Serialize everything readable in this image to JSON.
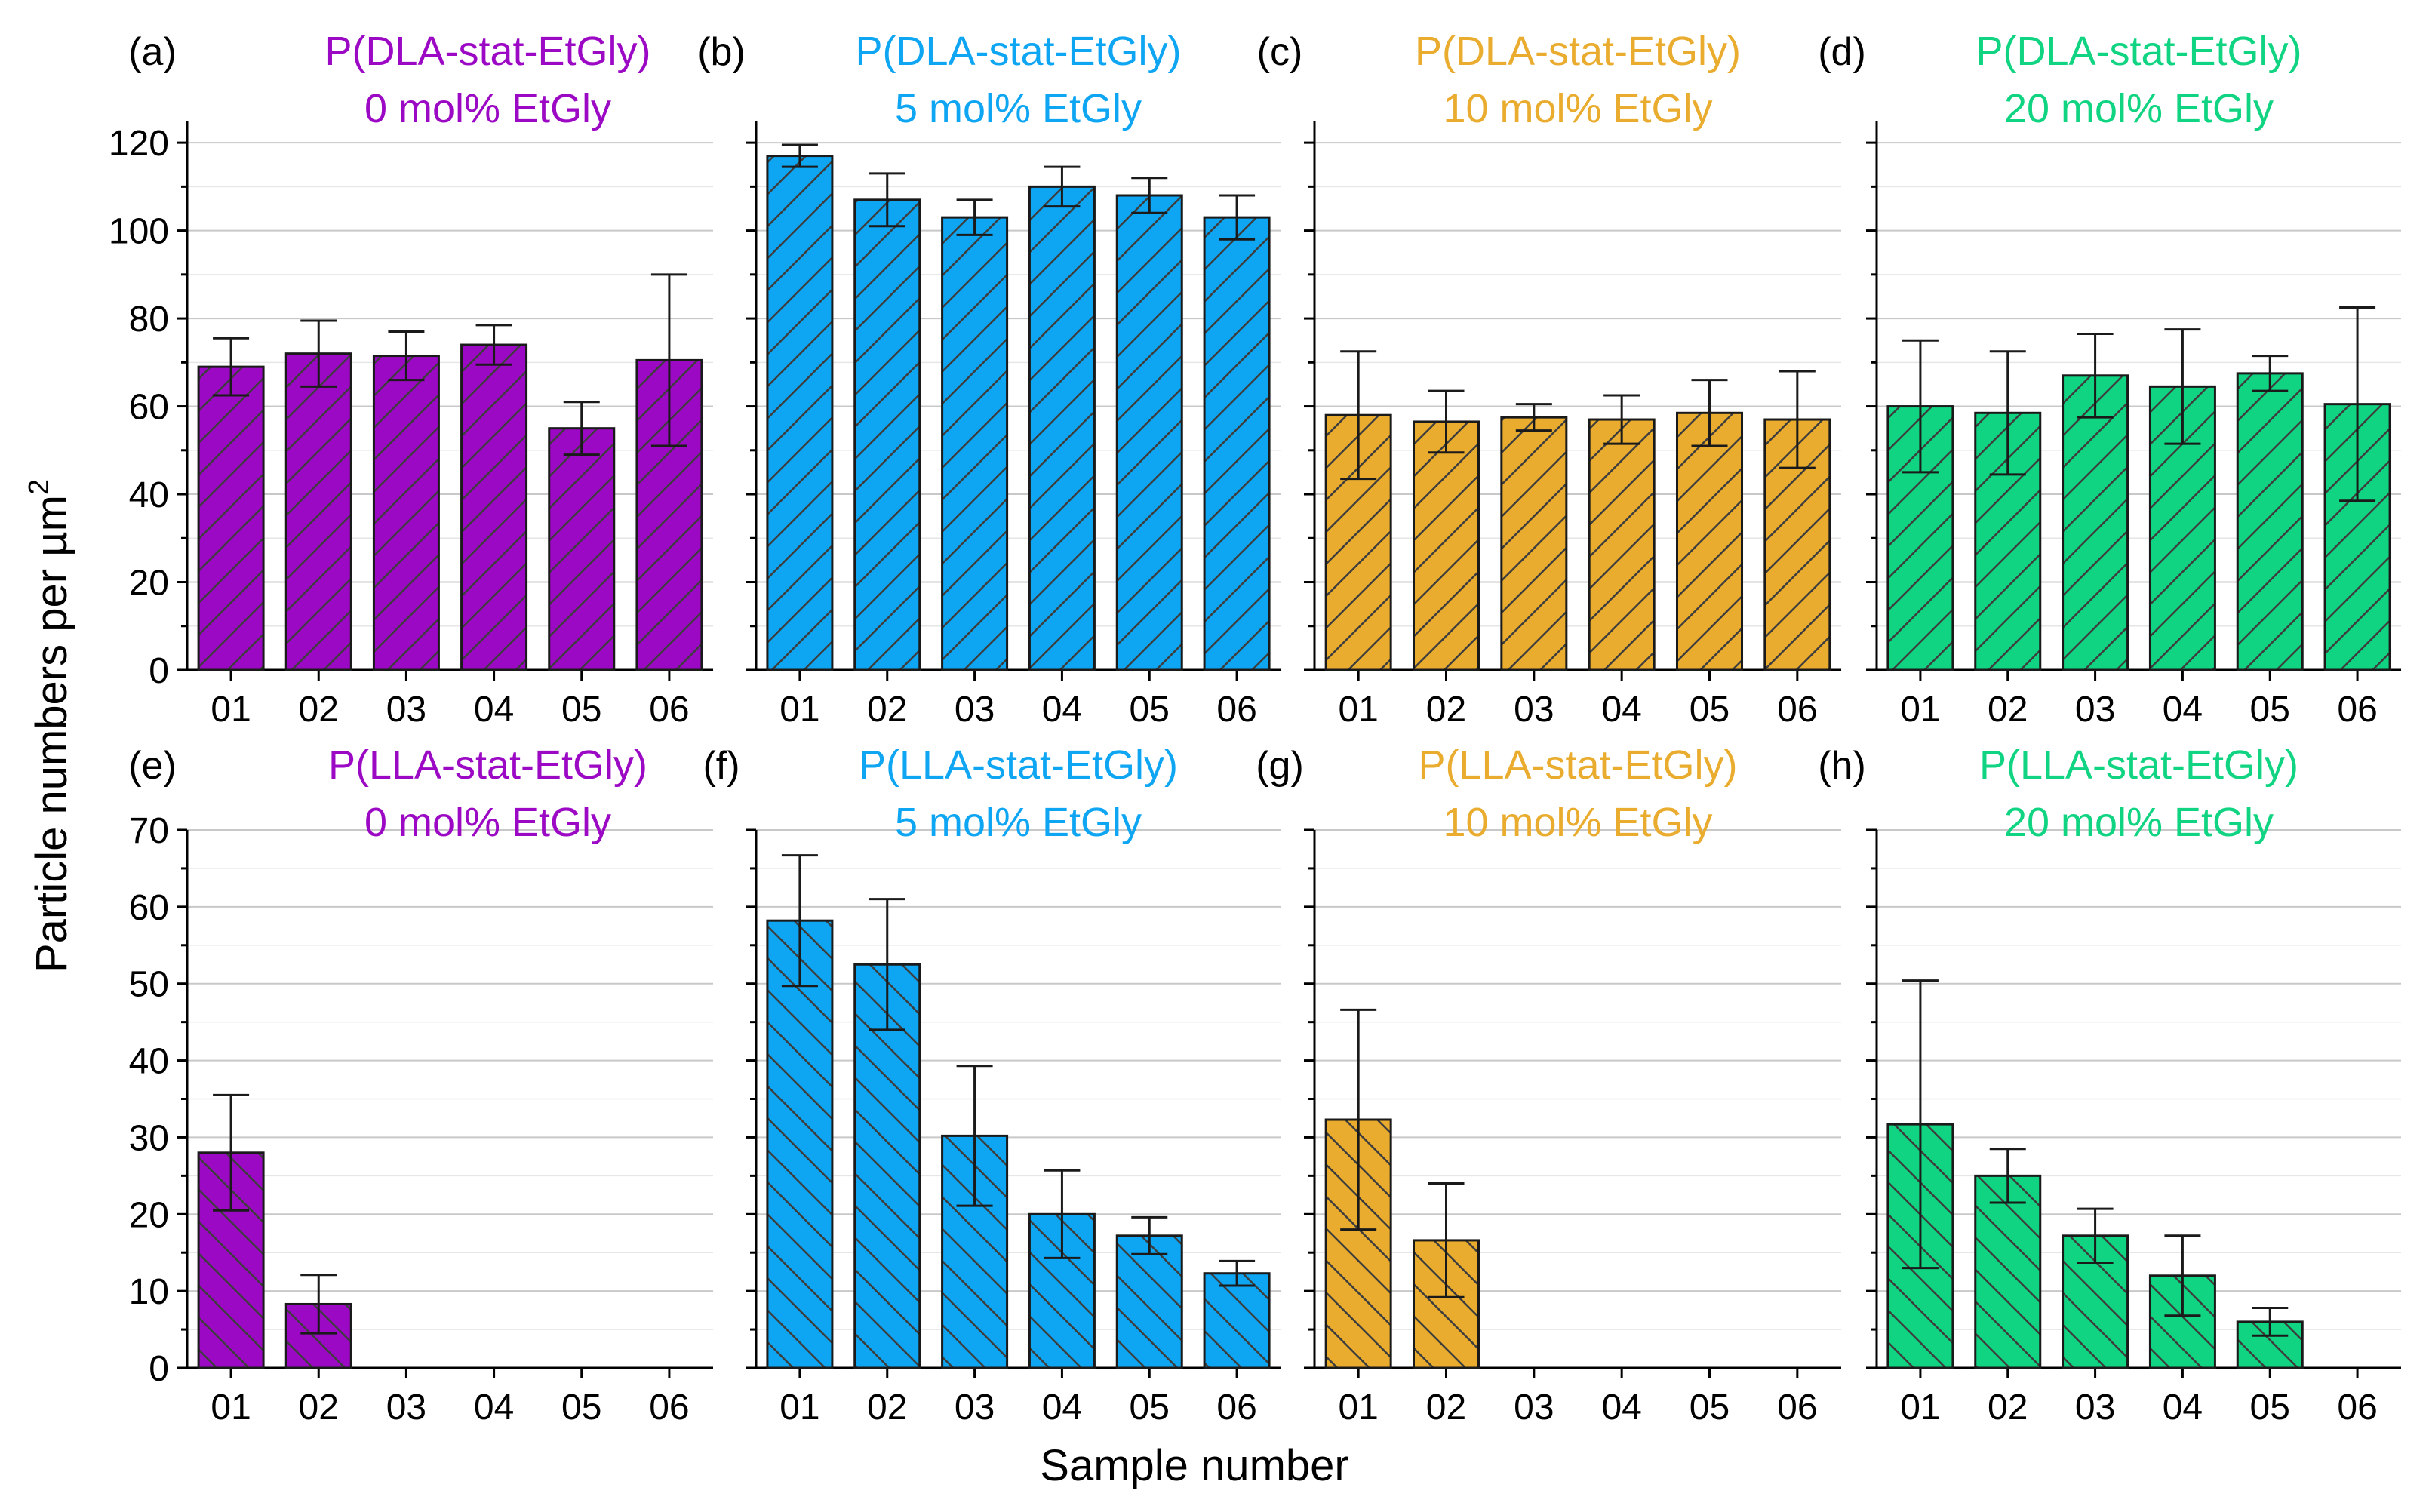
{
  "figure": {
    "ylabel": "Particle numbers per µm",
    "ylabel_sup": "2",
    "xlabel": "Sample number"
  },
  "chart_data": [
    {
      "type": "bar",
      "panel": "a",
      "panel_label": "(a)",
      "title_line1": "P(DLA-stat-EtGly)",
      "title_line2": "0 mol% EtGly",
      "color": "#9c09c4",
      "categories": [
        "01",
        "02",
        "03",
        "04",
        "05",
        "06"
      ],
      "values": [
        69,
        72,
        71.5,
        74,
        55,
        70.5
      ],
      "errors": [
        6.5,
        7.5,
        5.5,
        4.5,
        6,
        19.5
      ],
      "ylim": [
        0,
        125
      ],
      "yticks": [
        "0",
        "20",
        "40",
        "60",
        "80",
        "100",
        "120"
      ],
      "show_yticks": true
    },
    {
      "type": "bar",
      "panel": "b",
      "panel_label": "(b)",
      "title_line1": "P(DLA-stat-EtGly)",
      "title_line2": "5 mol% EtGly",
      "color": "#0ea5f2",
      "categories": [
        "01",
        "02",
        "03",
        "04",
        "05",
        "06"
      ],
      "values": [
        117,
        107,
        103,
        110,
        108,
        103
      ],
      "errors": [
        2.5,
        6,
        4,
        4.5,
        4,
        5
      ],
      "ylim": [
        0,
        125
      ],
      "yticks": [
        "0",
        "20",
        "40",
        "60",
        "80",
        "100",
        "120"
      ],
      "show_yticks": false
    },
    {
      "type": "bar",
      "panel": "c",
      "panel_label": "(c)",
      "title_line1": "P(DLA-stat-EtGly)",
      "title_line2": "10 mol% EtGly",
      "color": "#e9ac2e",
      "categories": [
        "01",
        "02",
        "03",
        "04",
        "05",
        "06"
      ],
      "values": [
        58,
        56.5,
        57.5,
        57,
        58.5,
        57
      ],
      "errors": [
        14.5,
        7,
        3,
        5.5,
        7.5,
        11
      ],
      "ylim": [
        0,
        125
      ],
      "yticks": [
        "0",
        "20",
        "40",
        "60",
        "80",
        "100",
        "120"
      ],
      "show_yticks": false
    },
    {
      "type": "bar",
      "panel": "d",
      "panel_label": "(d)",
      "title_line1": "P(DLA-stat-EtGly)",
      "title_line2": "20 mol% EtGly",
      "color": "#10d482",
      "categories": [
        "01",
        "02",
        "03",
        "04",
        "05",
        "06"
      ],
      "values": [
        60,
        58.5,
        67,
        64.5,
        67.5,
        60.5
      ],
      "errors": [
        15,
        14,
        9.5,
        13,
        4,
        22
      ],
      "ylim": [
        0,
        125
      ],
      "yticks": [
        "0",
        "20",
        "40",
        "60",
        "80",
        "100",
        "120"
      ],
      "show_yticks": false
    },
    {
      "type": "bar",
      "panel": "e",
      "panel_label": "(e)",
      "title_line1": "P(LLA-stat-EtGly)",
      "title_line2": "0 mol% EtGly",
      "color": "#9c09c4",
      "categories": [
        "01",
        "02",
        "03",
        "04",
        "05",
        "06"
      ],
      "values": [
        28,
        8.3,
        0,
        0,
        0,
        0
      ],
      "errors": [
        7.5,
        3.8,
        0,
        0,
        0,
        0
      ],
      "ylim": [
        0,
        70
      ],
      "yticks": [
        "0",
        "10",
        "20",
        "30",
        "40",
        "50",
        "60",
        "70"
      ],
      "show_yticks": true
    },
    {
      "type": "bar",
      "panel": "f",
      "panel_label": "(f)",
      "title_line1": "P(LLA-stat-EtGly)",
      "title_line2": "5 mol% EtGly",
      "color": "#0ea5f2",
      "categories": [
        "01",
        "02",
        "03",
        "04",
        "05",
        "06"
      ],
      "values": [
        58.2,
        52.5,
        30.2,
        20,
        17.2,
        12.3
      ],
      "errors": [
        8.5,
        8.5,
        9.1,
        5.7,
        2.4,
        1.6
      ],
      "ylim": [
        0,
        70
      ],
      "yticks": [
        "0",
        "10",
        "20",
        "30",
        "40",
        "50",
        "60",
        "70"
      ],
      "show_yticks": false
    },
    {
      "type": "bar",
      "panel": "g",
      "panel_label": "(g)",
      "title_line1": "P(LLA-stat-EtGly)",
      "title_line2": "10 mol% EtGly",
      "color": "#e9ac2e",
      "categories": [
        "01",
        "02",
        "03",
        "04",
        "05",
        "06"
      ],
      "values": [
        32.3,
        16.6,
        0,
        0,
        0,
        0
      ],
      "errors": [
        14.3,
        7.4,
        0,
        0,
        0,
        0
      ],
      "ylim": [
        0,
        70
      ],
      "yticks": [
        "0",
        "10",
        "20",
        "30",
        "40",
        "50",
        "60",
        "70"
      ],
      "show_yticks": false
    },
    {
      "type": "bar",
      "panel": "h",
      "panel_label": "(h)",
      "title_line1": "P(LLA-stat-EtGly)",
      "title_line2": "20 mol% EtGly",
      "color": "#10d482",
      "categories": [
        "01",
        "02",
        "03",
        "04",
        "05",
        "06"
      ],
      "values": [
        31.7,
        25,
        17.2,
        12,
        6,
        0
      ],
      "errors": [
        18.7,
        3.5,
        3.5,
        5.2,
        1.8,
        0
      ],
      "ylim": [
        0,
        70
      ],
      "yticks": [
        "0",
        "10",
        "20",
        "30",
        "40",
        "50",
        "60",
        "70"
      ],
      "show_yticks": false
    }
  ]
}
